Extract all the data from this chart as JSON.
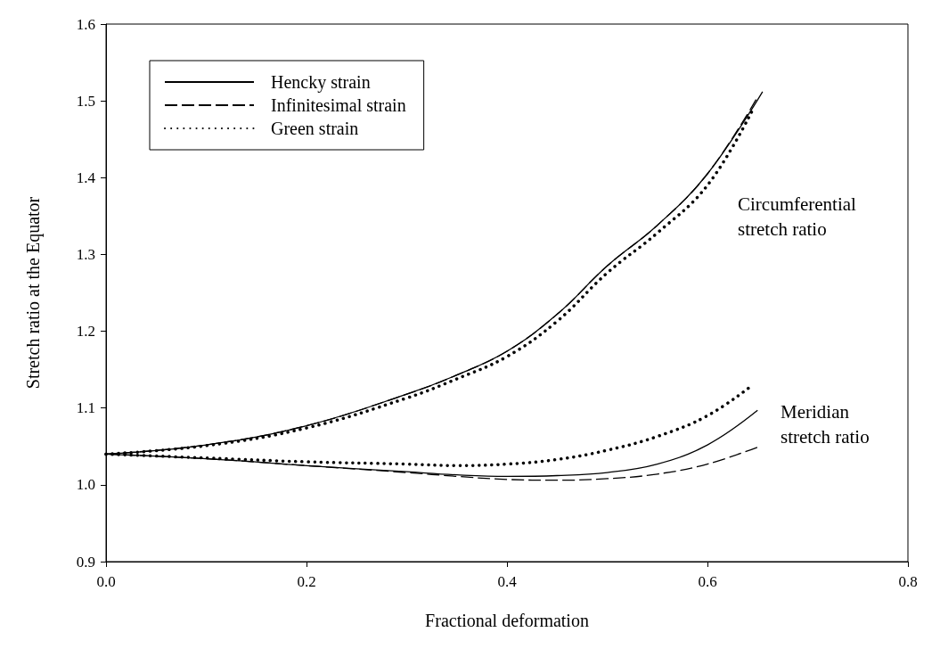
{
  "chart_data": {
    "type": "line",
    "xlabel": "Fractional deformation",
    "ylabel": "Stretch ratio at the Equator",
    "xlim": [
      0,
      0.8
    ],
    "xticks": [
      {
        "value": 0,
        "label": "0.0"
      },
      0.2,
      0.4,
      0.6,
      0.8
    ],
    "ylim": [
      0.9,
      1.6
    ],
    "yticks": [
      0.9,
      {
        "value": 1,
        "label": "1.0"
      },
      1.1,
      1.2,
      1.3,
      1.4,
      1.5,
      1.6
    ],
    "grid": false,
    "legend": "top left",
    "marker": "none",
    "annotations": [
      "Circumferential\nstretch ratio",
      "Meridian\nstretch ratio"
    ],
    "series": [
      {
        "name": "Hencky strain",
        "color": "#000000",
        "line_style": "solid",
        "x": [
          0,
          0.1,
          0.2,
          0.3,
          0.35,
          0.4,
          0.45,
          0.5,
          0.55,
          0.6,
          0.655
        ],
        "values": [
          1.04,
          1.052,
          1.077,
          1.118,
          1.143,
          1.174,
          1.222,
          1.285,
          1.338,
          1.405,
          1.512
        ]
      },
      {
        "name": "Infinitesimal strain",
        "color": "#000000",
        "line_style": "dashed",
        "x": [
          0,
          0.1,
          0.2,
          0.3,
          0.35,
          0.4,
          0.45,
          0.5,
          0.55,
          0.6,
          0.65
        ],
        "values": [
          1.04,
          1.052,
          1.077,
          1.118,
          1.143,
          1.174,
          1.222,
          1.285,
          1.338,
          1.405,
          1.505
        ]
      },
      {
        "name": "Green strain",
        "color": "#000000",
        "line_style": "dotted",
        "x": [
          0,
          0.1,
          0.2,
          0.3,
          0.35,
          0.4,
          0.45,
          0.5,
          0.55,
          0.6,
          0.645
        ],
        "values": [
          1.04,
          1.051,
          1.074,
          1.113,
          1.138,
          1.167,
          1.213,
          1.276,
          1.328,
          1.39,
          1.488
        ]
      },
      {
        "color": "#000000",
        "line_style": "solid",
        "x": [
          0,
          0.1,
          0.2,
          0.3,
          0.35,
          0.4,
          0.45,
          0.5,
          0.55,
          0.6,
          0.65
        ],
        "values": [
          1.04,
          1.034,
          1.025,
          1.017,
          1.013,
          1.011,
          1.012,
          1.016,
          1.027,
          1.052,
          1.097
        ]
      },
      {
        "color": "#000000",
        "line_style": "dashed",
        "x": [
          0,
          0.1,
          0.2,
          0.3,
          0.35,
          0.4,
          0.45,
          0.5,
          0.55,
          0.6,
          0.65
        ],
        "values": [
          1.04,
          1.034,
          1.025,
          1.016,
          1.011,
          1.007,
          1.006,
          1.008,
          1.014,
          1.027,
          1.049
        ]
      },
      {
        "color": "#000000",
        "line_style": "dotted",
        "x": [
          0,
          0.1,
          0.2,
          0.3,
          0.35,
          0.4,
          0.45,
          0.5,
          0.55,
          0.6,
          0.645
        ],
        "values": [
          1.04,
          1.035,
          1.03,
          1.027,
          1.025,
          1.027,
          1.033,
          1.045,
          1.063,
          1.09,
          1.13
        ]
      }
    ]
  }
}
